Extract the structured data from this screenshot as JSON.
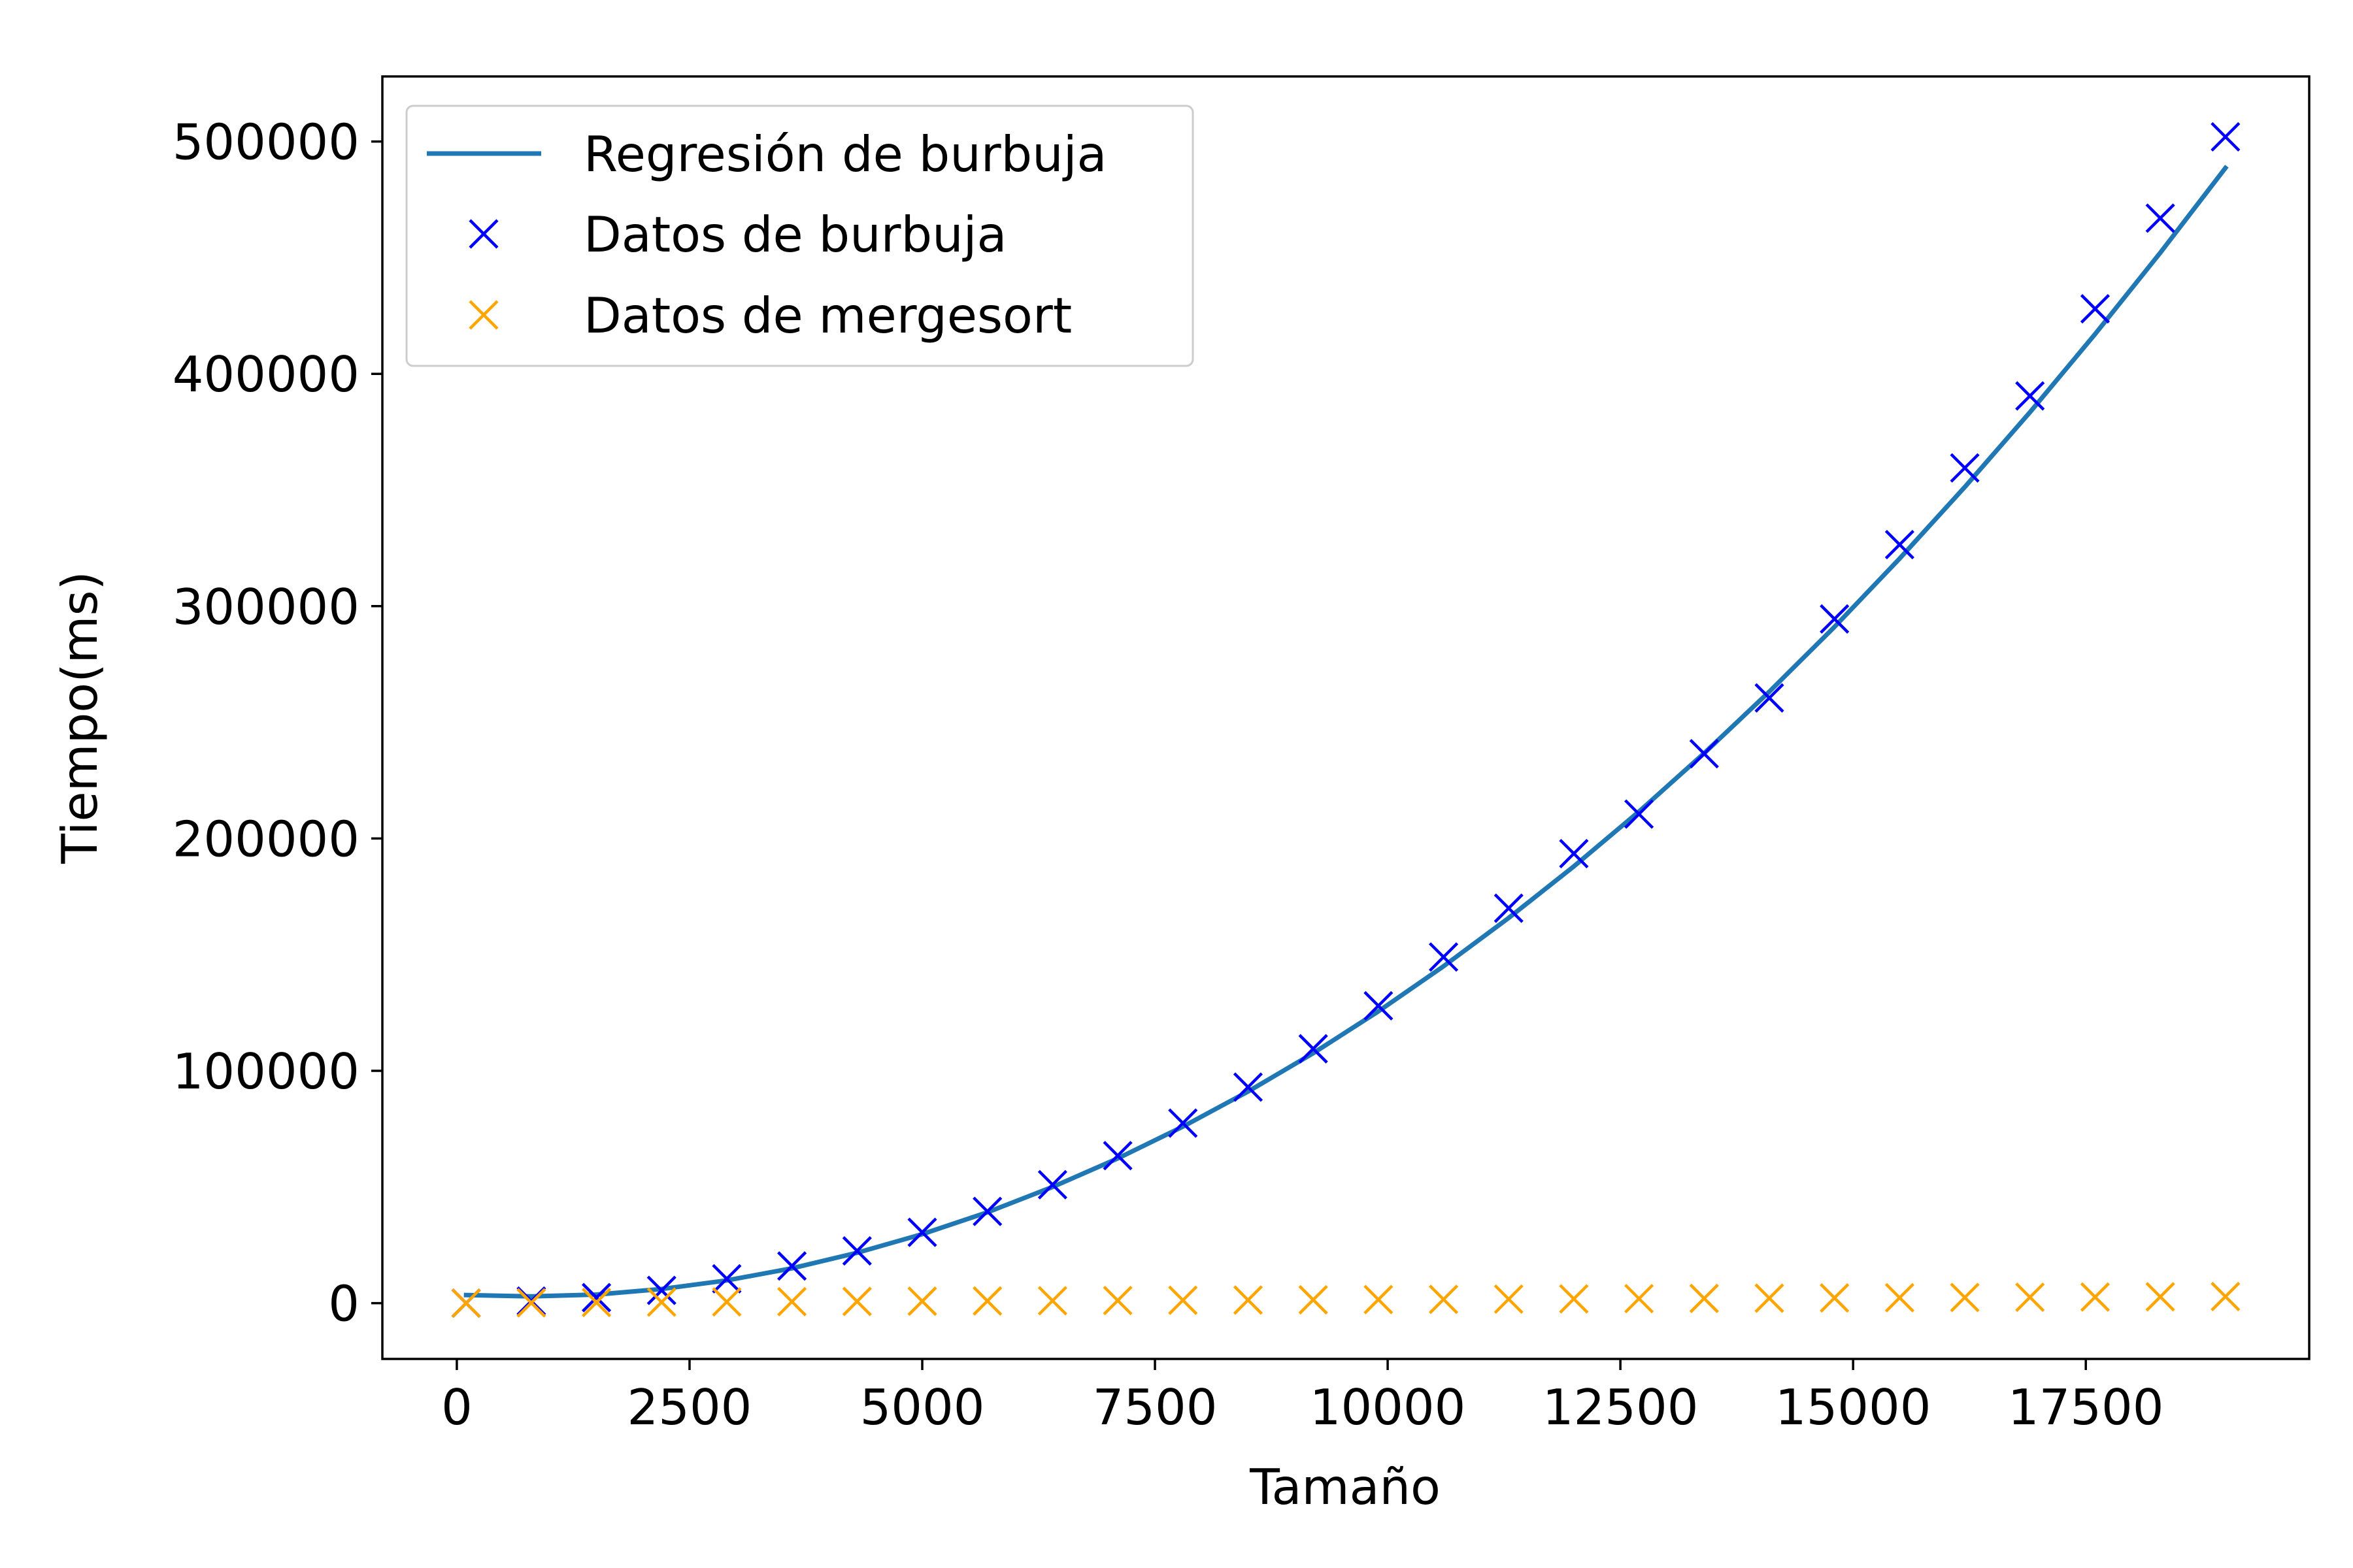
{
  "chart_data": {
    "type": "line",
    "title": "",
    "xlabel": "Tamaño",
    "ylabel": "Tiempo(ms)",
    "xlim": [
      -800,
      19900
    ],
    "ylim": [
      -24000,
      528000
    ],
    "xticks": [
      0,
      2500,
      5000,
      7500,
      10000,
      12500,
      15000,
      17500
    ],
    "yticks": [
      0,
      100000,
      200000,
      300000,
      400000,
      500000
    ],
    "grid": false,
    "legend_position": "top-left",
    "x": [
      100,
      800,
      1500,
      2200,
      2900,
      3600,
      4300,
      5000,
      5700,
      6400,
      7100,
      7800,
      8500,
      9200,
      9900,
      10600,
      11300,
      12000,
      12700,
      13400,
      14100,
      14800,
      15500,
      16200,
      16900,
      17600,
      18300,
      19000
    ],
    "series": [
      {
        "name": "Regresión de burbuja",
        "style": "line",
        "color": "#1f77b4",
        "values": [
          3500,
          2900,
          3700,
          6100,
          9800,
          15000,
          21700,
          29700,
          39100,
          50000,
          62300,
          76000,
          91100,
          107600,
          125600,
          145000,
          165800,
          188000,
          211600,
          236700,
          263200,
          291100,
          320500,
          351300,
          383500,
          417100,
          452100,
          488600
        ]
      },
      {
        "name": "Datos de burbuja",
        "style": "marker-x",
        "color": "#0000ff",
        "values": [
          0,
          900,
          2400,
          5500,
          10500,
          16000,
          22500,
          30500,
          39500,
          51000,
          63500,
          77500,
          93000,
          109500,
          128000,
          149000,
          170000,
          193500,
          210500,
          236500,
          260500,
          294500,
          326500,
          359500,
          390500,
          428000,
          467000,
          502000
        ]
      },
      {
        "name": "Datos de mergesort",
        "style": "marker-x",
        "color": "#ffa500",
        "values": [
          0,
          150,
          300,
          450,
          550,
          650,
          750,
          850,
          950,
          1050,
          1150,
          1250,
          1350,
          1450,
          1550,
          1650,
          1750,
          1850,
          1950,
          2050,
          2150,
          2250,
          2350,
          2450,
          2550,
          2650,
          2750,
          2850
        ]
      }
    ]
  }
}
